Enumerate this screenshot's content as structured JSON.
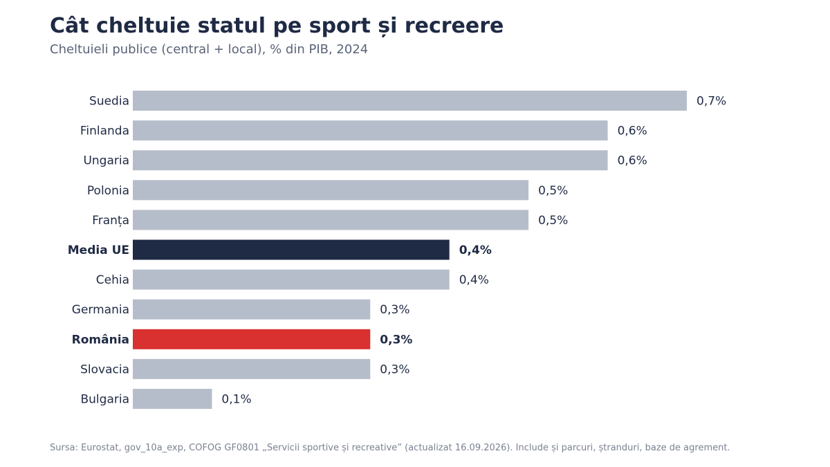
{
  "header": {
    "title": "Cât cheltuie statul pe sport și recreere",
    "subtitle": "Cheltuieli publice (central + local), % din PIB, 2024"
  },
  "footer": {
    "source": "Sursa: Eurostat, gov_10a_exp, COFOG GF0801 „Servicii sportive și recreative” (actualizat 16.09.2026). Include și parcuri, ștranduri, baze de agrement."
  },
  "colors": {
    "default_bar": "#b6bdca",
    "eu_average": "#1f2a44",
    "romania": "#d93030",
    "text": "#1f2a44"
  },
  "chart_data": {
    "type": "bar",
    "orientation": "horizontal",
    "xlim": [
      0,
      0.7
    ],
    "grid": false,
    "categories": [
      "Suedia",
      "Finlanda",
      "Ungaria",
      "Polonia",
      "Franța",
      "Media UE",
      "Cehia",
      "Germania",
      "România",
      "Slovacia",
      "Bulgaria"
    ],
    "values": [
      0.7,
      0.6,
      0.6,
      0.5,
      0.5,
      0.4,
      0.4,
      0.3,
      0.3,
      0.3,
      0.1
    ],
    "value_labels": [
      "0,7%",
      "0,6%",
      "0,6%",
      "0,5%",
      "0,5%",
      "0,4%",
      "0,4%",
      "0,3%",
      "0,3%",
      "0,3%",
      "0,1%"
    ],
    "highlight": [
      "default",
      "default",
      "default",
      "default",
      "default",
      "eu_average",
      "default",
      "default",
      "romania",
      "default",
      "default"
    ]
  }
}
